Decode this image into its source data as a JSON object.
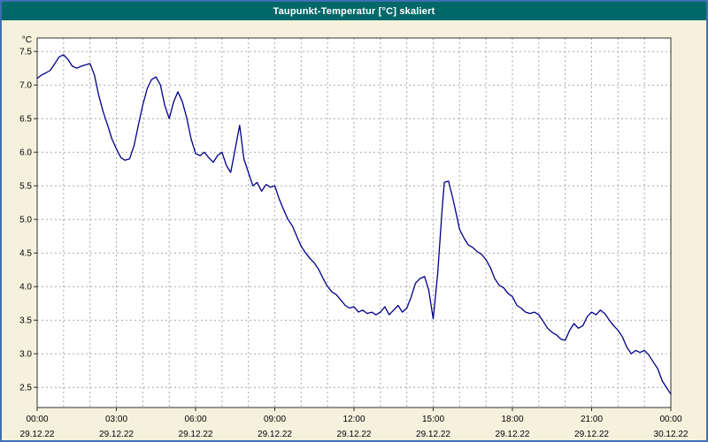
{
  "window": {
    "title": "Taupunkt-Temperatur [°C] skaliert"
  },
  "colors": {
    "frame": "#3f6fb5",
    "title_bar_bg": "#006868",
    "title_text": "#ffffff",
    "page_bg": "#f6f1dd",
    "plot_bg": "#ffffff",
    "grid": "#a8a8a8",
    "axis": "#303030",
    "tick_text": "#000000",
    "line": "#00008b"
  },
  "chart_data": {
    "type": "line",
    "title": "Taupunkt-Temperatur [°C] skaliert",
    "ylabel": "°C",
    "xlabel": "",
    "legend": [],
    "grid": "on",
    "ylim": [
      2.2,
      7.7
    ],
    "xlim": [
      0,
      24
    ],
    "grid_y_interval": 0.5,
    "grid_x_interval_hours": 1,
    "yticks": [
      2.5,
      3.0,
      3.5,
      4.0,
      4.5,
      5.0,
      5.5,
      6.0,
      6.5,
      7.0,
      7.5
    ],
    "ytick_labels": [
      "2.5",
      "3.0",
      "3.5",
      "4.0",
      "4.5",
      "5.0",
      "5.5",
      "6.0",
      "6.5",
      "7.0",
      "7.5"
    ],
    "x_major_ticks": [
      0,
      3,
      6,
      9,
      12,
      15,
      18,
      21,
      24
    ],
    "x_tick_labels": [
      "00:00",
      "03:00",
      "06:00",
      "09:00",
      "12:00",
      "15:00",
      "18:00",
      "21:00",
      "00:00"
    ],
    "x_date_labels": [
      "29.12.22",
      "29.12.22",
      "29.12.22",
      "29.12.22",
      "29.12.22",
      "29.12.22",
      "29.12.22",
      "29.12.22",
      "30.12.22"
    ],
    "series": [
      {
        "name": "Taupunkt-Temperatur",
        "x": [
          0,
          0.17,
          0.33,
          0.5,
          0.67,
          0.83,
          1,
          1.17,
          1.33,
          1.5,
          1.67,
          1.83,
          2,
          2.17,
          2.33,
          2.5,
          2.67,
          2.83,
          3,
          3.17,
          3.33,
          3.5,
          3.67,
          3.83,
          4,
          4.17,
          4.33,
          4.5,
          4.67,
          4.83,
          5,
          5.17,
          5.33,
          5.5,
          5.67,
          5.83,
          6,
          6.17,
          6.33,
          6.5,
          6.67,
          6.83,
          7,
          7.17,
          7.33,
          7.5,
          7.67,
          7.83,
          8,
          8.17,
          8.33,
          8.5,
          8.67,
          8.83,
          9,
          9.17,
          9.33,
          9.5,
          9.67,
          9.83,
          10,
          10.17,
          10.33,
          10.5,
          10.67,
          10.83,
          11,
          11.17,
          11.33,
          11.5,
          11.67,
          11.83,
          12,
          12.17,
          12.33,
          12.5,
          12.67,
          12.83,
          13,
          13.17,
          13.33,
          13.5,
          13.67,
          13.83,
          14,
          14.17,
          14.33,
          14.5,
          14.67,
          14.83,
          15,
          15.17,
          15.33,
          15.42,
          15.58,
          15.75,
          15.92,
          16,
          16.17,
          16.33,
          16.5,
          16.67,
          16.83,
          17,
          17.17,
          17.33,
          17.5,
          17.67,
          17.83,
          18,
          18.17,
          18.33,
          18.5,
          18.67,
          18.83,
          19,
          19.17,
          19.33,
          19.5,
          19.67,
          19.83,
          20,
          20.17,
          20.33,
          20.5,
          20.67,
          20.83,
          21,
          21.17,
          21.33,
          21.5,
          21.67,
          21.83,
          22,
          22.17,
          22.33,
          22.5,
          22.67,
          22.83,
          23,
          23.17,
          23.33,
          23.5,
          23.67,
          23.83,
          24
        ],
        "y": [
          7.1,
          7.15,
          7.18,
          7.22,
          7.32,
          7.42,
          7.45,
          7.38,
          7.28,
          7.25,
          7.28,
          7.3,
          7.32,
          7.15,
          6.85,
          6.6,
          6.4,
          6.2,
          6.05,
          5.92,
          5.88,
          5.9,
          6.1,
          6.4,
          6.7,
          6.95,
          7.08,
          7.12,
          7,
          6.7,
          6.5,
          6.75,
          6.9,
          6.75,
          6.5,
          6.2,
          5.98,
          5.95,
          6,
          5.92,
          5.85,
          5.95,
          6,
          5.8,
          5.7,
          6.05,
          6.4,
          5.9,
          5.7,
          5.5,
          5.55,
          5.42,
          5.52,
          5.48,
          5.5,
          5.3,
          5.15,
          5,
          4.9,
          4.75,
          4.6,
          4.5,
          4.42,
          4.35,
          4.25,
          4.12,
          4,
          3.92,
          3.88,
          3.8,
          3.72,
          3.68,
          3.7,
          3.62,
          3.65,
          3.6,
          3.62,
          3.58,
          3.62,
          3.7,
          3.58,
          3.65,
          3.72,
          3.62,
          3.68,
          3.85,
          4.05,
          4.12,
          4.15,
          3.95,
          3.52,
          4.2,
          5.1,
          5.55,
          5.57,
          5.3,
          5,
          4.85,
          4.72,
          4.62,
          4.58,
          4.52,
          4.48,
          4.4,
          4.28,
          4.12,
          4.02,
          3.98,
          3.9,
          3.85,
          3.72,
          3.68,
          3.62,
          3.6,
          3.62,
          3.58,
          3.48,
          3.38,
          3.32,
          3.28,
          3.22,
          3.2,
          3.35,
          3.45,
          3.38,
          3.42,
          3.55,
          3.62,
          3.58,
          3.65,
          3.6,
          3.5,
          3.42,
          3.35,
          3.25,
          3.1,
          3,
          3.05,
          3.02,
          3.05,
          2.98,
          2.88,
          2.78,
          2.6,
          2.5,
          2.4
        ]
      }
    ]
  }
}
